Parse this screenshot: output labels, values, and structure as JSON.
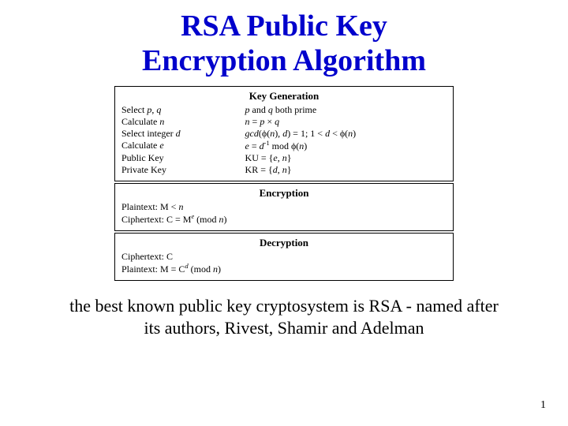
{
  "title_line_1": "RSA Public Key",
  "title_line_2": "Encryption Algorithm",
  "title_color": "#0000cc",
  "title_fontsize": 38,
  "box_border_color": "#000000",
  "box_bg_color": "#ffffff",
  "box_fontsize": 12,
  "keygen": {
    "heading": "Key Generation",
    "rows": [
      {
        "left_html": "Select <span class='italic'>p</span>, <span class='italic'>q</span>",
        "right_html": "<span class='italic'>p</span> and <span class='italic'>q</span> both prime"
      },
      {
        "left_html": "Calculate <span class='italic'>n</span>",
        "right_html": "<span class='italic'>n</span> = <span class='italic'>p</span> × <span class='italic'>q</span>"
      },
      {
        "left_html": "Select integer <span class='italic'>d</span>",
        "right_html": "<span class='italic'>gcd</span>(ϕ(<span class='italic'>n</span>), <span class='italic'>d</span>) = 1; 1 &lt; <span class='italic'>d</span> &lt; ϕ(<span class='italic'>n</span>)"
      },
      {
        "left_html": "Calculate <span class='italic'>e</span>",
        "right_html": "<span class='italic'>e</span> = <span class='italic'>d</span><sup>-1</sup> mod ϕ(<span class='italic'>n</span>)"
      },
      {
        "left_html": "Public Key",
        "right_html": "KU = {<span class='italic'>e</span>, <span class='italic'>n</span>}"
      },
      {
        "left_html": "Private Key",
        "right_html": "KR = {<span class='italic'>d</span>, <span class='italic'>n</span>}"
      }
    ]
  },
  "encryption": {
    "heading": "Encryption",
    "lines": [
      {
        "html": "Plaintext: M &lt; <span class='italic'>n</span>"
      },
      {
        "html": "Ciphertext: C = M<sup><span class='italic'>e</span></sup> (mod <span class='italic'>n</span>)"
      }
    ]
  },
  "decryption": {
    "heading": "Decryption",
    "lines": [
      {
        "html": "Ciphertext: C"
      },
      {
        "html": "Plaintext: M = C<sup><span class='italic'>d</span></sup> (mod <span class='italic'>n</span>)"
      }
    ]
  },
  "caption": "the best known public key cryptosystem is RSA - named after its authors, Rivest, Shamir and Adelman",
  "caption_fontsize": 22,
  "page_number": "1"
}
